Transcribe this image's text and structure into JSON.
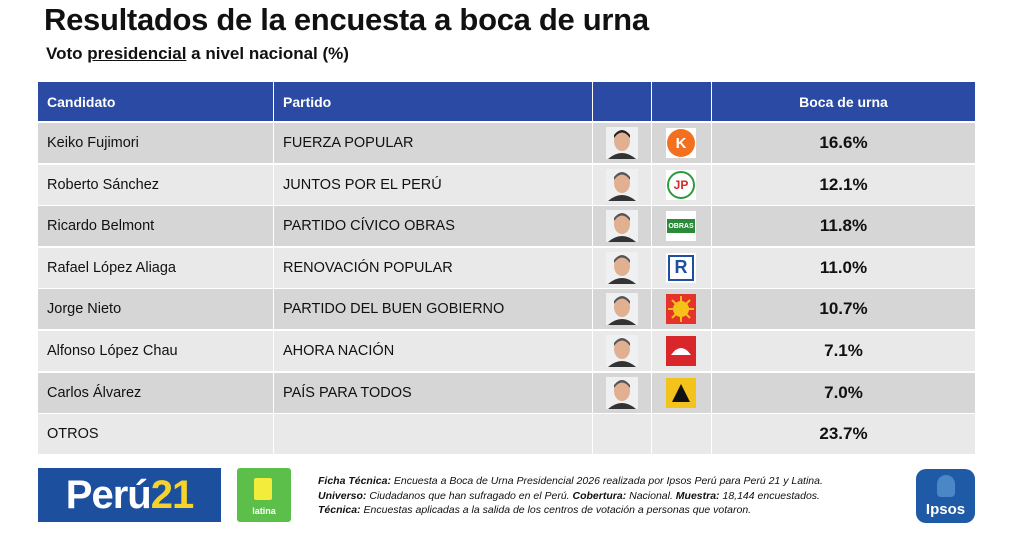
{
  "header": {
    "title": "Resultados de la encuesta a boca de urna",
    "subtitle": {
      "before": "Voto ",
      "underlined": "presidencial",
      "after": " a nivel nacional (%)"
    }
  },
  "table": {
    "columns": [
      "Candidato",
      "Partido",
      "Boca de urna"
    ],
    "rows": [
      {
        "candidate": "Keiko Fujimori",
        "party": "FUERZA POPULAR",
        "logo": "K",
        "result": "16.6%"
      },
      {
        "candidate": "Roberto Sánchez",
        "party": "JUNTOS POR EL PERÚ",
        "logo": "JP",
        "result": "12.1%"
      },
      {
        "candidate": "Ricardo Belmont",
        "party": "PARTIDO CÍVICO OBRAS",
        "logo": "OBRAS",
        "result": "11.8%"
      },
      {
        "candidate": "Rafael López Aliaga",
        "party": "RENOVACIÓN POPULAR",
        "logo": "R",
        "result": "11.0%"
      },
      {
        "candidate": "Jorge Nieto",
        "party": "PARTIDO DEL BUEN GOBIERNO",
        "result": "10.7%"
      },
      {
        "candidate": "Alfonso López Chau",
        "party": "AHORA NACIÓN",
        "result": "7.1%"
      },
      {
        "candidate": "Carlos Álvarez",
        "party": "PAÍS PARA TODOS",
        "result": "7.0%"
      },
      {
        "candidate": "OTROS",
        "result": "23.7%"
      }
    ]
  },
  "footer": {
    "brands": {
      "peru": "Perú",
      "num": "21",
      "latina": "latina",
      "ipsos": "Ipsos"
    },
    "notes": [
      [
        {
          "label": "Ficha Técnica:",
          "text": " Encuesta a Boca de Urna Presidencial 2026 realizada por Ipsos Perú para Perú 21 y Latina."
        }
      ],
      [
        {
          "label": "Universo:",
          "text": " Ciudadanos que han sufragado en el Perú. "
        },
        {
          "label": "Cobertura:",
          "text": " Nacional. "
        },
        {
          "label": "Muestra:",
          "text": " 18,144 encuestados."
        }
      ],
      [
        {
          "label": "Técnica:",
          "text": " Encuestas aplicadas a la salida de los centros de votación a personas que votaron."
        }
      ]
    ]
  }
}
